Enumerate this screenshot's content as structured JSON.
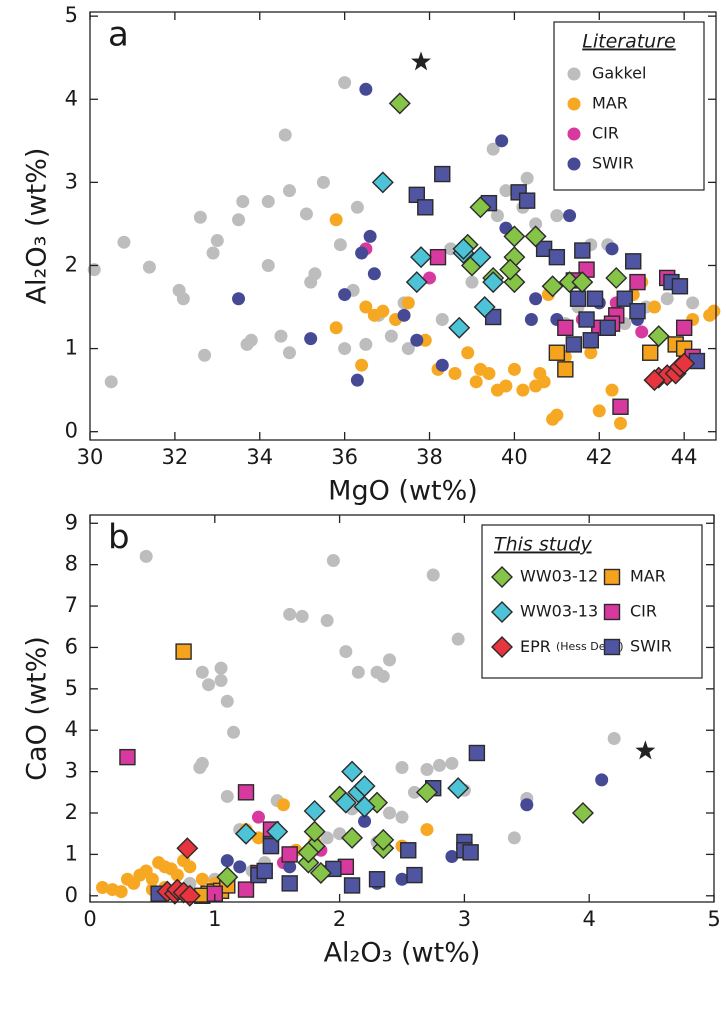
{
  "chart_data": [
    {
      "type": "scatter",
      "panel_label": "a",
      "x_label": "MgO (wt%)",
      "y_label": "Al₂O₃ (wt%)",
      "xlim": [
        30,
        44.75
      ],
      "ylim": [
        -0.1,
        5.05
      ],
      "xticks": [
        30,
        32,
        34,
        36,
        38,
        40,
        42,
        44
      ],
      "yticks": [
        0,
        1,
        2,
        3,
        4,
        5
      ],
      "legend_title": "Literature",
      "legend": "upper right",
      "series": [
        {
          "name": "Gakkel",
          "color": "#bdbdbd",
          "marker": "circle",
          "in_legend": true,
          "x": [
            30.1,
            30.5,
            30.8,
            31.4,
            32.1,
            32.2,
            32.6,
            32.7,
            32.9,
            33.0,
            33.5,
            33.6,
            33.7,
            33.8,
            34.2,
            34.2,
            34.5,
            34.6,
            34.7,
            34.7,
            35.1,
            35.2,
            35.3,
            35.5,
            35.9,
            36.0,
            36.0,
            36.2,
            36.3,
            36.5,
            36.8,
            37.1,
            37.4,
            37.5,
            38.3,
            38.5,
            39.0,
            39.5,
            39.6,
            39.8,
            40.2,
            40.3,
            40.5,
            41.0,
            41.2,
            41.8,
            42.2,
            42.8,
            43.1,
            43.6,
            44.2,
            41.5,
            42.6
          ],
          "values": [
            1.95,
            0.6,
            2.28,
            1.98,
            1.7,
            1.6,
            2.58,
            0.92,
            2.15,
            2.3,
            2.55,
            2.77,
            1.05,
            1.1,
            2.77,
            2.0,
            1.15,
            3.57,
            2.9,
            0.95,
            2.62,
            1.8,
            1.9,
            3.0,
            2.25,
            4.2,
            1.0,
            1.7,
            2.7,
            1.05,
            1.4,
            1.15,
            1.55,
            1.0,
            1.35,
            2.2,
            1.8,
            3.4,
            2.6,
            2.9,
            2.7,
            3.05,
            2.5,
            2.6,
            1.3,
            2.25,
            2.25,
            2.05,
            1.5,
            1.6,
            1.55,
            1.5,
            1.3
          ]
        },
        {
          "name": "MAR",
          "color": "#f7a823",
          "marker": "circle",
          "in_legend": true,
          "x": [
            35.8,
            35.8,
            36.4,
            36.5,
            36.7,
            36.9,
            37.2,
            37.5,
            37.9,
            38.2,
            38.6,
            38.9,
            39.1,
            39.2,
            39.4,
            39.6,
            39.8,
            40.0,
            40.2,
            40.5,
            40.6,
            40.7,
            40.9,
            41.0,
            40.8,
            41.2,
            42.0,
            42.5,
            42.3,
            43.0,
            43.3,
            44.2,
            44.6,
            44.7,
            41.8,
            42.8
          ],
          "values": [
            2.55,
            1.25,
            0.8,
            1.5,
            1.4,
            1.45,
            1.35,
            1.55,
            1.1,
            0.75,
            0.7,
            0.95,
            0.6,
            0.75,
            0.7,
            0.5,
            0.55,
            0.75,
            0.5,
            0.55,
            0.7,
            0.6,
            0.15,
            0.2,
            1.65,
            0.9,
            0.25,
            0.1,
            0.5,
            1.8,
            1.5,
            1.35,
            1.4,
            1.45,
            0.95,
            1.65
          ]
        },
        {
          "name": "CIR",
          "color": "#d8399e",
          "marker": "circle",
          "in_legend": true,
          "x": [
            36.5,
            38.0,
            41.6,
            42.4,
            43.0
          ],
          "values": [
            2.2,
            1.85,
            1.35,
            1.55,
            1.2
          ]
        },
        {
          "name": "SWIR",
          "color": "#464a95",
          "marker": "circle",
          "in_legend": true,
          "x": [
            33.5,
            35.2,
            36.0,
            36.3,
            36.4,
            36.5,
            36.6,
            37.4,
            37.7,
            39.7,
            39.8,
            40.5,
            41.3,
            41.0,
            42.0,
            42.3,
            42.9,
            36.7,
            38.3,
            40.4
          ],
          "values": [
            1.6,
            1.12,
            1.65,
            0.62,
            2.15,
            4.12,
            2.35,
            1.4,
            1.1,
            3.5,
            2.45,
            1.6,
            2.6,
            1.35,
            1.55,
            2.2,
            1.35,
            1.9,
            0.8,
            1.35
          ]
        },
        {
          "color": "#f5a21d",
          "marker": "square",
          "in_legend": false,
          "x": [
            41.0,
            41.2,
            43.2,
            43.8,
            44.0
          ],
          "values": [
            0.95,
            0.75,
            0.95,
            1.05,
            1.0
          ]
        },
        {
          "color": "#d8399e",
          "marker": "square",
          "in_legend": false,
          "x": [
            38.2,
            41.2,
            41.7,
            42.0,
            42.4,
            42.5,
            42.9,
            43.6,
            44.0,
            44.2,
            41.4,
            42.3
          ],
          "values": [
            2.1,
            1.25,
            1.95,
            1.25,
            1.4,
            0.3,
            1.8,
            1.85,
            1.25,
            0.9,
            1.82,
            1.3
          ]
        },
        {
          "color": "#4f55a0",
          "marker": "square",
          "in_legend": false,
          "x": [
            37.7,
            37.9,
            38.3,
            39.4,
            39.5,
            40.1,
            40.3,
            40.7,
            41.0,
            41.4,
            41.6,
            41.7,
            41.8,
            41.9,
            42.2,
            42.6,
            42.8,
            42.9,
            43.7,
            43.9,
            44.3,
            41.5
          ],
          "values": [
            2.85,
            2.7,
            3.1,
            2.75,
            1.38,
            2.88,
            2.78,
            2.2,
            2.1,
            1.05,
            2.18,
            1.35,
            1.1,
            1.6,
            1.25,
            1.6,
            2.05,
            1.45,
            1.8,
            1.75,
            0.85,
            1.6
          ]
        },
        {
          "color": "#86c448",
          "marker": "diamond",
          "in_legend": false,
          "x": [
            37.3,
            38.9,
            39.0,
            39.2,
            40.0,
            40.0,
            40.0,
            40.5,
            40.9,
            41.3,
            41.6,
            42.4,
            43.4,
            39.5,
            39.9
          ],
          "values": [
            3.95,
            2.25,
            2.0,
            2.7,
            2.35,
            2.1,
            1.8,
            2.35,
            1.75,
            1.8,
            1.8,
            1.85,
            1.15,
            1.85,
            1.95
          ]
        },
        {
          "color": "#4cc3d6",
          "marker": "diamond",
          "in_legend": false,
          "x": [
            36.9,
            37.8,
            37.7,
            38.7,
            38.8,
            39.2,
            39.3,
            39.5,
            38.8
          ],
          "values": [
            3.0,
            2.1,
            1.8,
            1.25,
            2.15,
            2.1,
            1.5,
            1.8,
            2.2
          ]
        },
        {
          "color": "#e8343c",
          "marker": "diamond",
          "in_legend": false,
          "x": [
            43.4,
            43.6,
            43.8,
            43.9,
            44.0,
            43.3
          ],
          "values": [
            0.65,
            0.68,
            0.7,
            0.78,
            0.82,
            0.62
          ]
        },
        {
          "color": "#222222",
          "marker": "star",
          "in_legend": false,
          "x": [
            37.8
          ],
          "values": [
            4.45
          ]
        }
      ]
    },
    {
      "type": "scatter",
      "panel_label": "b",
      "x_label": "Al₂O₃ (wt%)",
      "y_label": "CaO (wt%)",
      "xlim": [
        0,
        5
      ],
      "ylim": [
        -0.15,
        9.2
      ],
      "xticks": [
        0,
        1,
        2,
        3,
        4,
        5
      ],
      "yticks": [
        0,
        1,
        2,
        3,
        4,
        5,
        6,
        7,
        8,
        9
      ],
      "legend_title": "This study",
      "legend": "upper right",
      "series": [
        {
          "color": "#bdbdbd",
          "marker": "circle",
          "in_legend": false,
          "x": [
            0.45,
            0.9,
            0.95,
            1.05,
            1.1,
            1.05,
            1.15,
            0.9,
            0.88,
            1.6,
            1.7,
            1.9,
            1.95,
            2.05,
            2.15,
            2.3,
            2.35,
            2.4,
            2.75,
            2.95,
            3.5,
            3.4,
            4.2,
            2.5,
            2.6,
            2.7,
            2.8,
            2.9,
            3.0,
            2.4,
            2.2,
            2.0,
            1.9,
            1.8,
            2.3,
            2.1,
            1.6,
            1.4,
            1.3,
            1.0,
            0.8,
            1.1,
            1.2,
            2.5,
            1.5
          ],
          "values": [
            8.2,
            5.4,
            5.1,
            5.5,
            4.7,
            5.2,
            3.95,
            3.2,
            3.1,
            6.8,
            6.75,
            6.65,
            8.1,
            5.9,
            5.4,
            5.4,
            5.3,
            5.7,
            7.75,
            6.2,
            2.35,
            1.4,
            3.8,
            3.1,
            2.5,
            3.05,
            3.15,
            3.2,
            2.55,
            2.0,
            1.8,
            1.5,
            1.4,
            1.2,
            1.3,
            2.1,
            1.0,
            0.8,
            0.6,
            0.4,
            0.3,
            2.4,
            1.6,
            1.9,
            2.3
          ]
        },
        {
          "color": "#f7a823",
          "marker": "circle",
          "in_legend": false,
          "x": [
            0.1,
            0.18,
            0.25,
            0.35,
            0.4,
            0.45,
            0.5,
            0.55,
            0.6,
            0.65,
            0.7,
            0.75,
            0.8,
            0.9,
            1.0,
            1.1,
            1.25,
            1.35,
            1.55,
            1.65,
            1.8,
            2.5,
            2.7,
            0.6,
            0.5,
            0.3
          ],
          "values": [
            0.2,
            0.15,
            0.1,
            0.3,
            0.5,
            0.6,
            0.4,
            0.8,
            0.7,
            0.65,
            0.5,
            0.85,
            0.7,
            0.4,
            0.3,
            0.2,
            1.6,
            1.4,
            2.2,
            1.1,
            1.3,
            1.2,
            1.6,
            0.2,
            0.15,
            0.4
          ]
        },
        {
          "color": "#d8399e",
          "marker": "circle",
          "in_legend": false,
          "x": [
            1.35,
            1.55,
            1.85,
            1.9
          ],
          "values": [
            1.9,
            0.8,
            1.1,
            0.6
          ]
        },
        {
          "color": "#464a95",
          "marker": "circle",
          "in_legend": false,
          "x": [
            1.6,
            1.2,
            1.45,
            2.2,
            3.5,
            4.1,
            2.9,
            2.3,
            1.1,
            2.5
          ],
          "values": [
            0.7,
            0.7,
            1.5,
            1.8,
            2.2,
            2.8,
            0.95,
            0.3,
            0.85,
            0.4
          ]
        },
        {
          "name": "MAR",
          "color": "#f5a21d",
          "marker": "square",
          "in_legend": true,
          "x": [
            0.75,
            0.95,
            1.0,
            1.05,
            1.1,
            0.9
          ],
          "values": [
            5.9,
            0.05,
            0.1,
            0.12,
            0.25,
            0.0
          ]
        },
        {
          "name": "CIR",
          "color": "#d8399e",
          "marker": "square",
          "in_legend": true,
          "x": [
            0.3,
            1.25,
            1.45,
            1.35,
            2.05,
            1.25,
            1.6,
            1.0
          ],
          "values": [
            3.35,
            2.5,
            1.6,
            0.55,
            0.7,
            0.15,
            1.0,
            0.05
          ]
        },
        {
          "name": "SWIR",
          "color": "#4f55a0",
          "marker": "square",
          "in_legend": true,
          "x": [
            0.55,
            1.35,
            1.4,
            1.45,
            1.6,
            1.95,
            2.1,
            2.3,
            2.6,
            2.75,
            3.0,
            3.1,
            2.55,
            3.0,
            3.05,
            1.45
          ],
          "values": [
            0.05,
            0.5,
            0.6,
            1.25,
            0.3,
            0.65,
            0.25,
            0.4,
            0.5,
            2.6,
            1.3,
            3.45,
            1.1,
            1.1,
            1.05,
            1.2
          ]
        },
        {
          "name": "WW03-12",
          "color": "#86c448",
          "marker": "diamond",
          "in_legend": true,
          "x": [
            1.75,
            1.8,
            1.8,
            1.85,
            1.75,
            2.0,
            2.1,
            2.3,
            2.35,
            2.35,
            2.7,
            3.95,
            1.1
          ],
          "values": [
            0.8,
            1.2,
            1.55,
            0.55,
            1.05,
            2.4,
            1.4,
            2.25,
            1.15,
            1.35,
            2.5,
            2.0,
            0.45
          ]
        },
        {
          "name": "WW03-13",
          "color": "#4cc3d6",
          "marker": "diamond",
          "in_legend": true,
          "x": [
            1.25,
            1.5,
            1.8,
            2.1,
            2.15,
            2.2,
            2.05,
            2.2,
            2.95
          ],
          "values": [
            1.5,
            1.55,
            2.05,
            3.0,
            2.5,
            2.65,
            2.25,
            2.15,
            2.6
          ]
        },
        {
          "name": "EPR (Hess Deep)",
          "color": "#e8343c",
          "marker": "diamond",
          "in_legend": true,
          "x": [
            0.62,
            0.68,
            0.7,
            0.75,
            0.78,
            0.8
          ],
          "values": [
            0.1,
            0.05,
            0.15,
            0.08,
            1.15,
            0.0
          ]
        },
        {
          "color": "#222222",
          "marker": "star",
          "in_legend": false,
          "x": [
            4.45
          ],
          "values": [
            3.5
          ]
        }
      ]
    }
  ]
}
